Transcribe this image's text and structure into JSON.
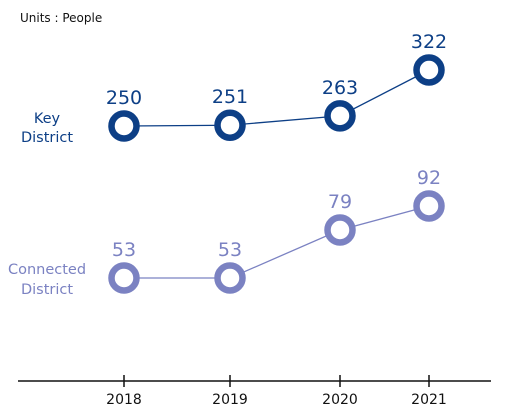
{
  "chart_data": {
    "type": "line",
    "units": "Units : People",
    "categories": [
      "2018",
      "2019",
      "2020",
      "2021"
    ],
    "series": [
      {
        "name": "Key District",
        "name_lines": [
          "Key",
          "District"
        ],
        "values": [
          250,
          251,
          263,
          322
        ],
        "color": "#0d3f86"
      },
      {
        "name": "Connected District",
        "name_lines": [
          "Connected",
          "District"
        ],
        "values": [
          53,
          53,
          79,
          92
        ],
        "color": "#7b82c2"
      }
    ]
  }
}
